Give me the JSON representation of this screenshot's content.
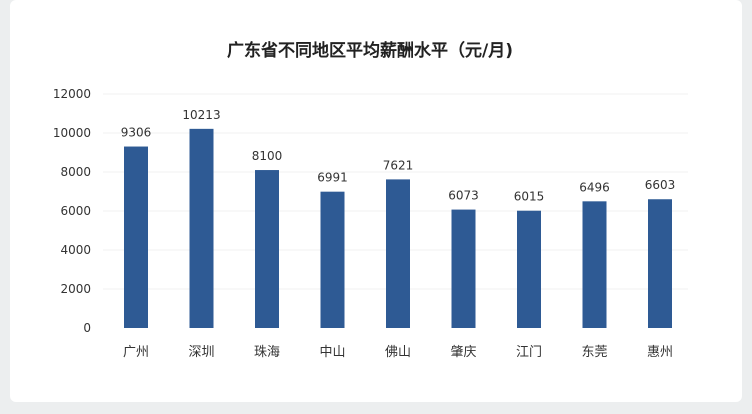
{
  "chart_data": {
    "type": "bar",
    "title": "广东省不同地区平均薪酬水平（元/月)",
    "categories": [
      "广州",
      "深圳",
      "珠海",
      "中山",
      "佛山",
      "肇庆",
      "江门",
      "东莞",
      "惠州"
    ],
    "values": [
      9306,
      10213,
      8100,
      6991,
      7621,
      6073,
      6015,
      6496,
      6603
    ],
    "ylim": [
      0,
      12000
    ],
    "yticks": [
      0,
      2000,
      4000,
      6000,
      8000,
      10000,
      12000
    ],
    "xlabel": "",
    "ylabel": "",
    "grid": true,
    "bar_color": "#2e5a94",
    "gridline_color": "#f0f0f0"
  }
}
